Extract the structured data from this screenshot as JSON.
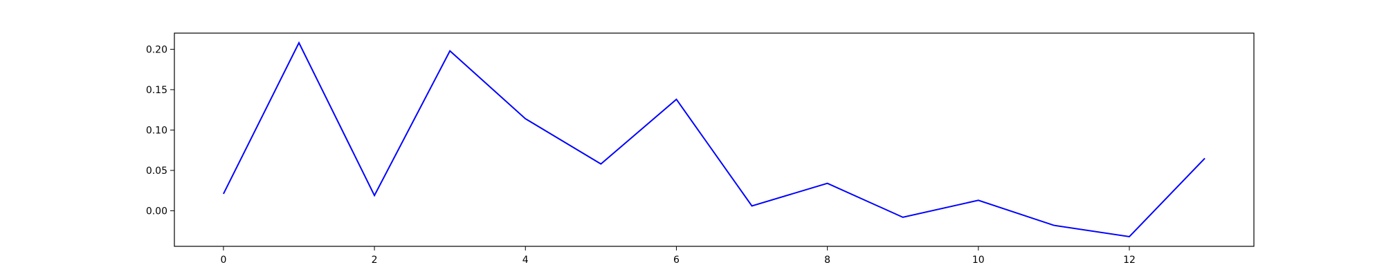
{
  "chart_data": {
    "type": "line",
    "title": "",
    "xlabel": "",
    "ylabel": "",
    "x": [
      0,
      1,
      2,
      3,
      4,
      5,
      6,
      7,
      8,
      9,
      10,
      11,
      12,
      13
    ],
    "series": [
      {
        "values": [
          0.021,
          0.208,
          0.019,
          0.198,
          0.114,
          0.058,
          0.138,
          0.006,
          0.034,
          -0.008,
          0.013,
          -0.018,
          -0.032,
          0.065
        ],
        "color": "#0000ff"
      }
    ],
    "xlim": [
      -0.65,
      13.65
    ],
    "ylim": [
      -0.044,
      0.22
    ],
    "x_ticks": [
      0,
      2,
      4,
      6,
      8,
      10,
      12
    ],
    "x_tick_labels": [
      "0",
      "2",
      "4",
      "6",
      "8",
      "10",
      "12"
    ],
    "y_ticks": [
      0.0,
      0.05,
      0.1,
      0.15,
      0.2
    ],
    "y_tick_labels": [
      "0.00",
      "0.05",
      "0.10",
      "0.15",
      "0.20"
    ],
    "grid": false,
    "legend": "none"
  }
}
